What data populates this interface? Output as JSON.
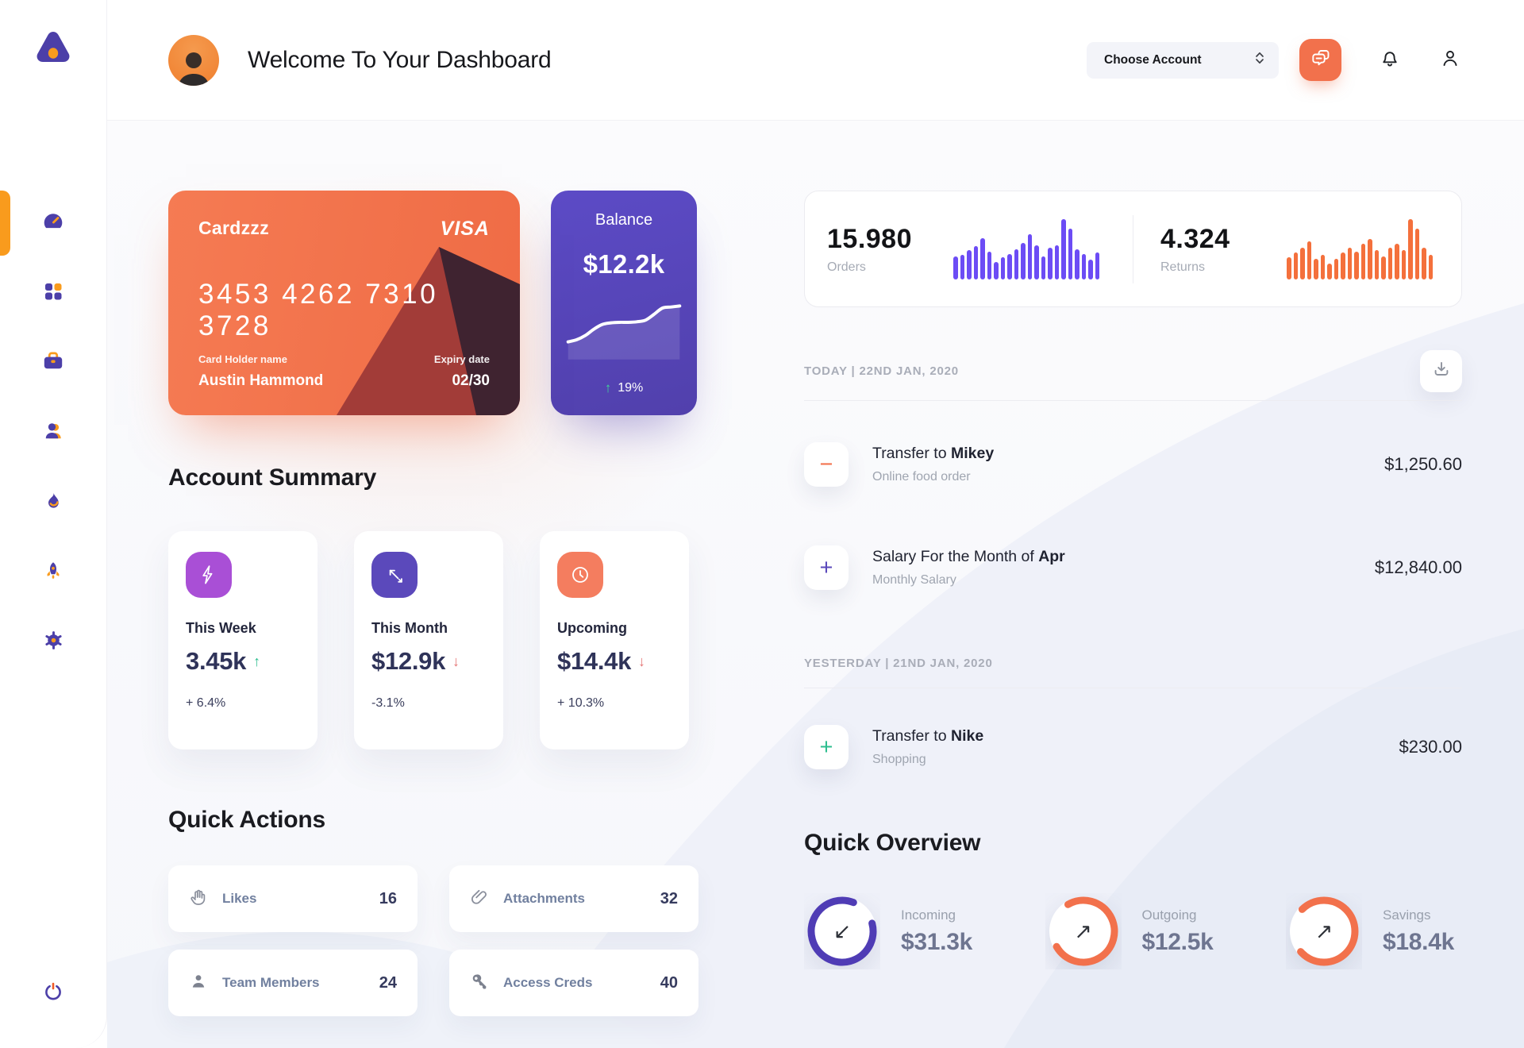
{
  "header": {
    "title": "Welcome To Your Dashboard",
    "account_select_label": "Choose Account",
    "icons": {
      "chat": "chat-bubbles-icon",
      "notifications": "bell-icon",
      "profile": "user-icon",
      "select_chevron": "select-chevrons-icon"
    }
  },
  "sidebar": {
    "logo": "triangle-logo",
    "items": [
      "dashboard",
      "apps",
      "work",
      "team",
      "activity",
      "launch",
      "settings"
    ],
    "logout": "power"
  },
  "credit_card": {
    "name": "Cardzzz",
    "brand": "VISA",
    "number": "3453 4262 7310 3728",
    "holder_label": "Card Holder name",
    "holder": "Austin Hammond",
    "expiry_label": "Expiry date",
    "expiry": "02/30"
  },
  "balance": {
    "title": "Balance",
    "value": "$12.2k",
    "up_arrow": "↑",
    "change": "19%"
  },
  "account_summary": {
    "title": "Account Summary",
    "cards": [
      {
        "label": "This Week",
        "value": "3.45k",
        "arrow": "↑",
        "trend_color": "#2EBE8F",
        "change": "+ 6.4%",
        "icon": "lightning-icon",
        "color": "#A94FD6"
      },
      {
        "label": "This Month",
        "value": "$12.9k",
        "arrow": "↓",
        "trend_color": "#E57373",
        "change": "-3.1%",
        "icon": "diagonal-arrows-icon",
        "color": "#5B49BB"
      },
      {
        "label": "Upcoming",
        "value": "$14.4k",
        "arrow": "↓",
        "trend_color": "#E57373",
        "change": "+ 10.3%",
        "icon": "clock-icon",
        "color": "#F47D5F"
      }
    ]
  },
  "quick_actions": {
    "title": "Quick Actions",
    "items": [
      {
        "label": "Likes",
        "count": "16",
        "icon": "clap-icon"
      },
      {
        "label": "Attachments",
        "count": "32",
        "icon": "paperclip-icon"
      },
      {
        "label": "Team Members",
        "count": "24",
        "icon": "member-icon"
      },
      {
        "label": "Access Creds",
        "count": "40",
        "icon": "key-icon"
      }
    ]
  },
  "stats": {
    "orders_value": "15.980",
    "orders_label": "Orders",
    "returns_value": "4.324",
    "returns_label": "Returns"
  },
  "chart_data": [
    {
      "type": "bar",
      "name": "orders-sparkline",
      "color": "#6C4CF5",
      "ylim": [
        0,
        100
      ],
      "values": [
        38,
        40,
        48,
        55,
        68,
        45,
        28,
        36,
        42,
        50,
        60,
        74,
        56,
        38,
        52,
        56,
        100,
        84,
        50,
        42,
        32,
        44
      ]
    },
    {
      "type": "bar",
      "name": "returns-sparkline",
      "color": "#F4703C",
      "ylim": [
        0,
        100
      ],
      "values": [
        36,
        44,
        52,
        62,
        34,
        40,
        26,
        34,
        44,
        52,
        46,
        58,
        66,
        48,
        38,
        52,
        58,
        48,
        100,
        84,
        52,
        40
      ]
    },
    {
      "type": "line",
      "name": "balance-trend",
      "color": "#FFFFFF",
      "ylim": [
        0,
        100
      ],
      "values": [
        22,
        26,
        34,
        46,
        55,
        58,
        59,
        59,
        60,
        63,
        74,
        86,
        88,
        90
      ]
    }
  ],
  "transactions": {
    "download_icon": "download-icon",
    "groups": [
      {
        "date_label": "TODAY | 22ND JAN, 2020",
        "items": [
          {
            "title_prefix": "Transfer to ",
            "title_bold": "Mikey",
            "subtitle": "Online food order",
            "amount": "$1,250.60",
            "sign": "−",
            "sign_color": "#F2714C"
          },
          {
            "title_prefix": "Salary For the Month of ",
            "title_bold": "Apr",
            "subtitle": "Monthly Salary",
            "amount": "$12,840.00",
            "sign": "+",
            "sign_color": "#5B49BB"
          }
        ]
      },
      {
        "date_label": "YESTERDAY | 21ND JAN, 2020",
        "items": [
          {
            "title_prefix": "Transfer to ",
            "title_bold": "Nike",
            "subtitle": "Shopping",
            "amount": "$230.00",
            "sign": "+",
            "sign_color": "#2EBE8F"
          }
        ]
      }
    ]
  },
  "quick_overview": {
    "title": "Quick Overview",
    "items": [
      {
        "label": "Incoming",
        "value": "$31.3k",
        "ring_color": "#4F3CB5",
        "percent": 85,
        "rotate_deg": -15,
        "arrow": "↙"
      },
      {
        "label": "Outgoing",
        "value": "$12.5k",
        "ring_color": "#F2714C",
        "percent": 75,
        "rotate_deg": -120,
        "arrow": "↗"
      },
      {
        "label": "Savings",
        "value": "$18.4k",
        "ring_color": "#F2714C",
        "percent": 76,
        "rotate_deg": -135,
        "arrow": "↗"
      }
    ]
  },
  "colors": {
    "accent_orange": "#F2714C",
    "accent_purple": "#5B49BB",
    "sidebar_purple": "#4C3FA8",
    "sidebar_orange": "#F99B1D",
    "green": "#2EBE8F",
    "red": "#E57373"
  }
}
